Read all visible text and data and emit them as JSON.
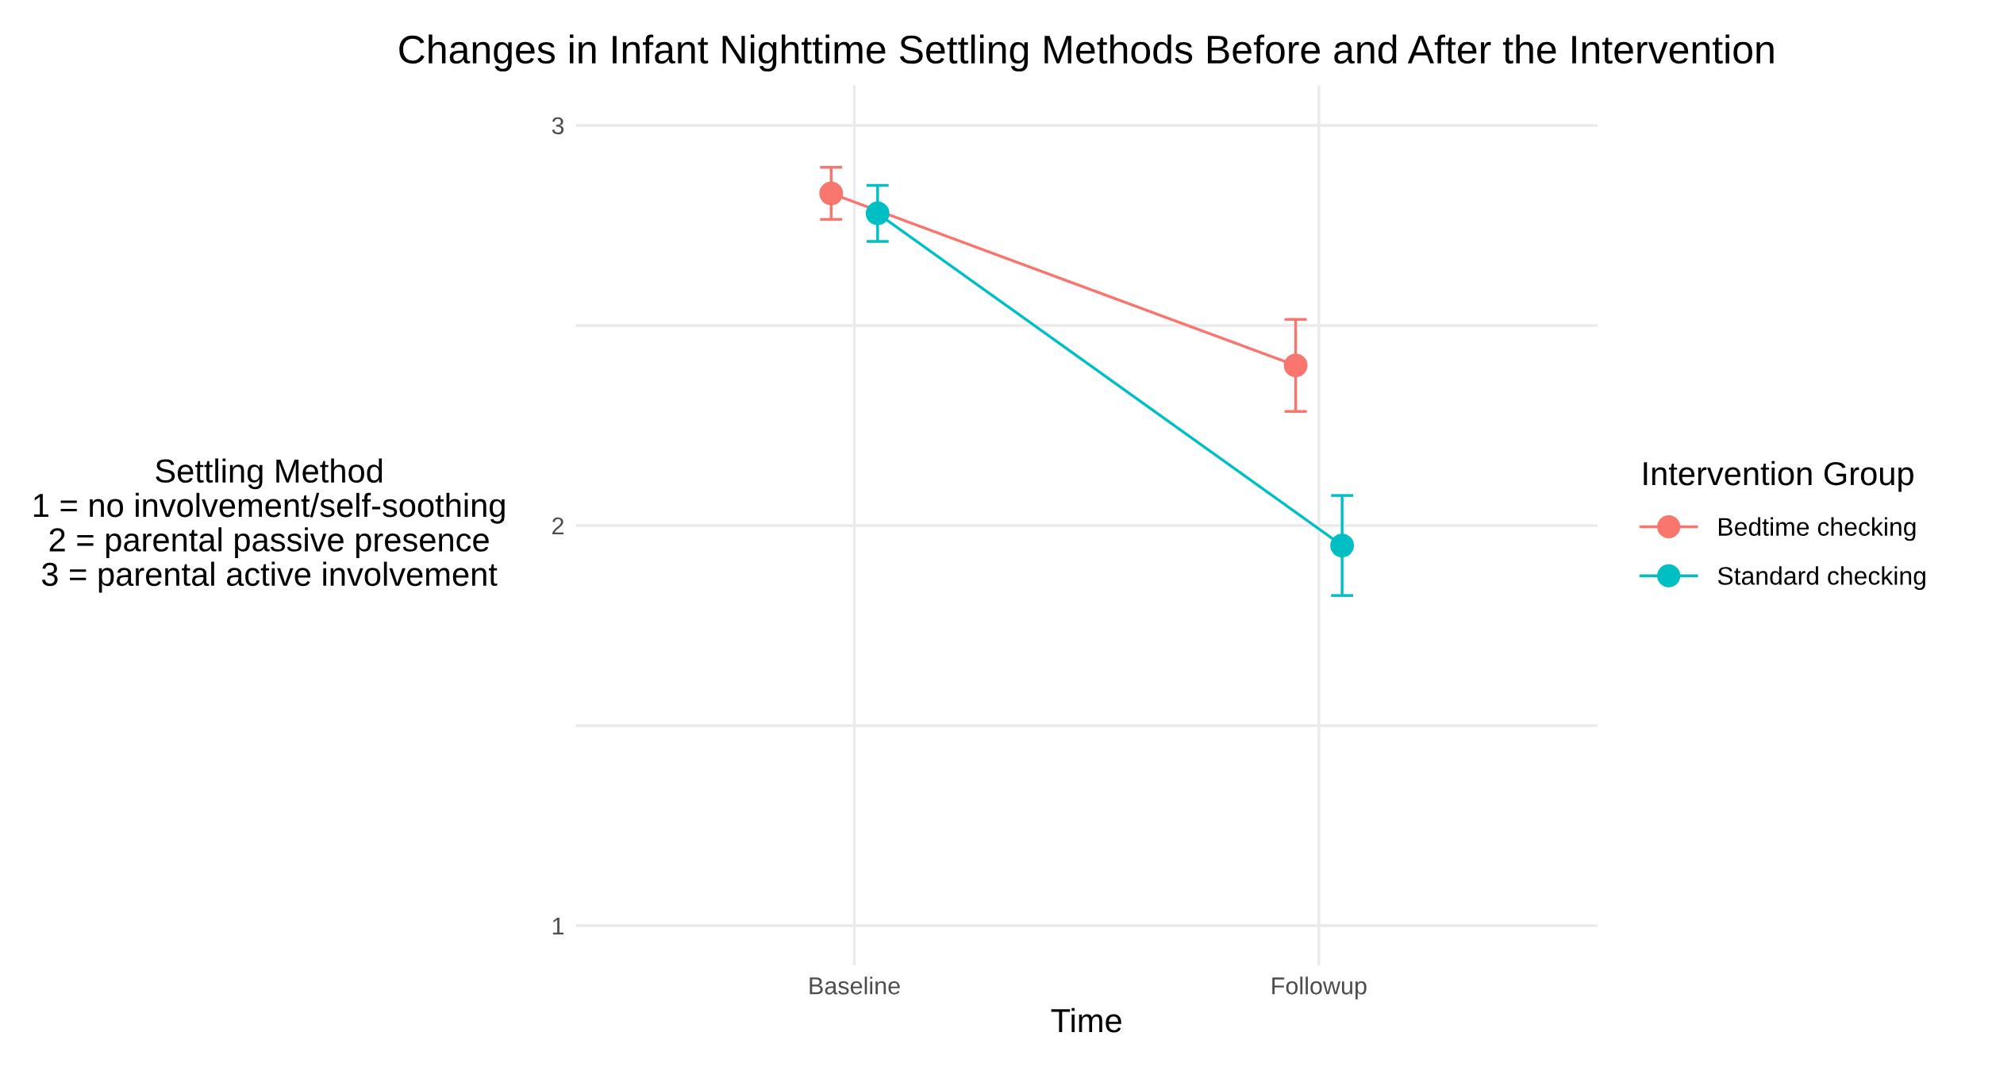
{
  "chart_data": {
    "type": "line",
    "title": "Changes in Infant Nighttime Settling Methods Before and After the Intervention",
    "xlabel": "Time",
    "ylabel": "Settling Method\n1 = no involvement/self-soothing\n2 = parental passive presence\n3 = parental active involvement",
    "legend_title": "Intervention Group",
    "categories": [
      "Baseline",
      "Followup"
    ],
    "series": [
      {
        "name": "Bedtime checking",
        "color": "#f8766d",
        "values": [
          2.83,
          2.4
        ],
        "errors": [
          0.065,
          0.115
        ]
      },
      {
        "name": "Standard checking",
        "color": "#00bfc4",
        "values": [
          2.78,
          1.95
        ],
        "errors": [
          0.07,
          0.125
        ]
      }
    ],
    "ylim": [
      0.9,
      3.1
    ],
    "yticks": [
      1,
      {
        "value": 1.5,
        "label": null
      },
      2,
      {
        "value": 2.5,
        "label": null
      },
      3
    ],
    "grid": true,
    "legend": "right",
    "marker": "circle",
    "line_style": "solid"
  }
}
